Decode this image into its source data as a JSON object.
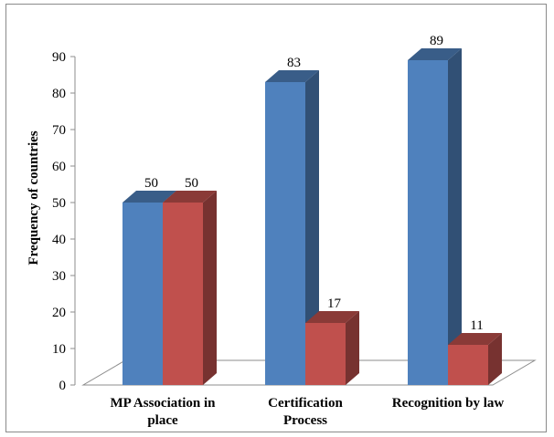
{
  "chart_data": {
    "type": "bar",
    "categories": [
      "MP Association in place",
      "Certification Process",
      "Recognition by law"
    ],
    "category_lines": [
      [
        "MP Association in",
        "place"
      ],
      [
        "Certification",
        "Process"
      ],
      [
        "Recognition by law"
      ]
    ],
    "series": [
      {
        "values": [
          50,
          83,
          89
        ],
        "color": "#4F81BD"
      },
      {
        "values": [
          50,
          17,
          11
        ],
        "color": "#C0504D"
      }
    ],
    "ylabel": "Frequency of countries",
    "ylim": [
      0,
      90
    ],
    "yticks": [
      0,
      10,
      20,
      30,
      40,
      50,
      60,
      70,
      80,
      90
    ],
    "grid": false,
    "legend": "none",
    "style": "3d-clustered-column"
  }
}
